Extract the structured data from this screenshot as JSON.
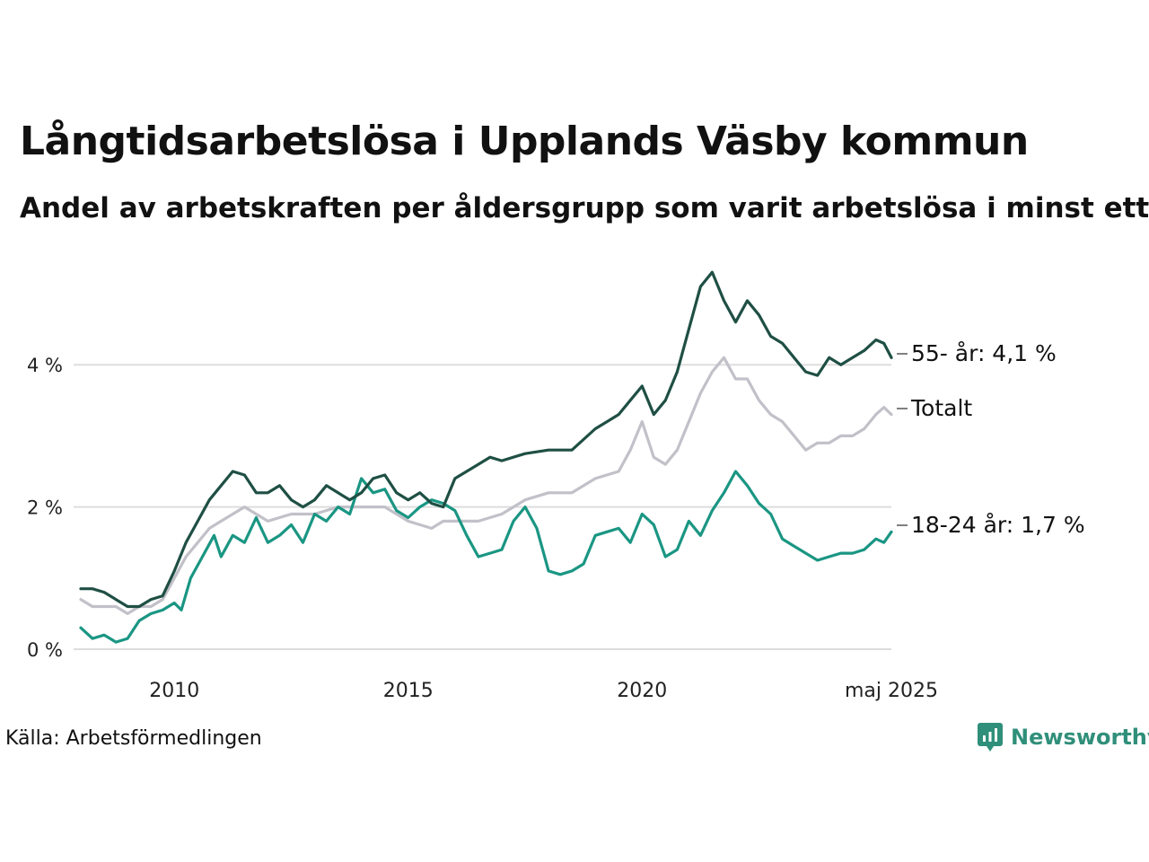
{
  "title": "Långtidsarbetslösa i Upplands Väsby kommun",
  "subtitle": "Andel av arbetskraften per åldersgrupp som varit arbetslösa i minst ett år",
  "source": "Källa: Arbetsförmedlingen",
  "brand": "Newsworthy",
  "colors": {
    "series_55": "#1f4f44",
    "series_total": "#c2c0c8",
    "series_18_24": "#1a9683",
    "grid": "#dddddd",
    "brand": "#2f8f7a"
  },
  "chart_data": {
    "type": "line",
    "x_unit": "year (decimal)",
    "xlim": [
      2008.0,
      2025.33
    ],
    "ylim": [
      0,
      5.4
    ],
    "y_ticks": [
      0,
      2,
      4
    ],
    "y_tick_labels": [
      "0 %",
      "2 %",
      "4 %"
    ],
    "x_ticks": [
      2010,
      2015,
      2020,
      2025.33
    ],
    "x_tick_labels": [
      "2010",
      "2015",
      "2020",
      "maj 2025"
    ],
    "grid": "horizontal",
    "legend": "direct labels at line ends",
    "series": [
      {
        "key": "total",
        "name": "Totalt",
        "end_label": "Totalt",
        "points": [
          [
            2008.0,
            0.7
          ],
          [
            2008.25,
            0.6
          ],
          [
            2008.75,
            0.6
          ],
          [
            2009.0,
            0.5
          ],
          [
            2009.25,
            0.6
          ],
          [
            2009.5,
            0.6
          ],
          [
            2009.75,
            0.7
          ],
          [
            2010.0,
            1.0
          ],
          [
            2010.25,
            1.3
          ],
          [
            2010.5,
            1.5
          ],
          [
            2010.75,
            1.7
          ],
          [
            2011.0,
            1.8
          ],
          [
            2011.25,
            1.9
          ],
          [
            2011.5,
            2.0
          ],
          [
            2011.75,
            1.9
          ],
          [
            2012.0,
            1.8
          ],
          [
            2012.5,
            1.9
          ],
          [
            2013.0,
            1.9
          ],
          [
            2013.5,
            2.0
          ],
          [
            2014.0,
            2.0
          ],
          [
            2014.5,
            2.0
          ],
          [
            2014.75,
            1.9
          ],
          [
            2015.0,
            1.8
          ],
          [
            2015.5,
            1.7
          ],
          [
            2015.75,
            1.8
          ],
          [
            2016.0,
            1.8
          ],
          [
            2016.5,
            1.8
          ],
          [
            2017.0,
            1.9
          ],
          [
            2017.5,
            2.1
          ],
          [
            2018.0,
            2.2
          ],
          [
            2018.5,
            2.2
          ],
          [
            2019.0,
            2.4
          ],
          [
            2019.5,
            2.5
          ],
          [
            2019.75,
            2.8
          ],
          [
            2020.0,
            3.2
          ],
          [
            2020.25,
            2.7
          ],
          [
            2020.5,
            2.6
          ],
          [
            2020.75,
            2.8
          ],
          [
            2021.0,
            3.2
          ],
          [
            2021.25,
            3.6
          ],
          [
            2021.5,
            3.9
          ],
          [
            2021.75,
            4.1
          ],
          [
            2022.0,
            3.8
          ],
          [
            2022.25,
            3.8
          ],
          [
            2022.5,
            3.5
          ],
          [
            2022.75,
            3.3
          ],
          [
            2023.0,
            3.2
          ],
          [
            2023.25,
            3.0
          ],
          [
            2023.5,
            2.8
          ],
          [
            2023.75,
            2.9
          ],
          [
            2024.0,
            2.9
          ],
          [
            2024.25,
            3.0
          ],
          [
            2024.5,
            3.0
          ],
          [
            2024.75,
            3.1
          ],
          [
            2025.0,
            3.3
          ],
          [
            2025.17,
            3.4
          ],
          [
            2025.33,
            3.3
          ]
        ]
      },
      {
        "key": "age_18_24",
        "name": "18-24 år",
        "end_label": "18-24 år: 1,7 %",
        "points": [
          [
            2008.0,
            0.3
          ],
          [
            2008.25,
            0.15
          ],
          [
            2008.5,
            0.2
          ],
          [
            2008.75,
            0.1
          ],
          [
            2009.0,
            0.15
          ],
          [
            2009.25,
            0.4
          ],
          [
            2009.5,
            0.5
          ],
          [
            2009.75,
            0.55
          ],
          [
            2010.0,
            0.65
          ],
          [
            2010.15,
            0.55
          ],
          [
            2010.35,
            1.0
          ],
          [
            2010.6,
            1.3
          ],
          [
            2010.85,
            1.6
          ],
          [
            2011.0,
            1.3
          ],
          [
            2011.25,
            1.6
          ],
          [
            2011.5,
            1.5
          ],
          [
            2011.75,
            1.85
          ],
          [
            2012.0,
            1.5
          ],
          [
            2012.25,
            1.6
          ],
          [
            2012.5,
            1.75
          ],
          [
            2012.75,
            1.5
          ],
          [
            2013.0,
            1.9
          ],
          [
            2013.25,
            1.8
          ],
          [
            2013.5,
            2.0
          ],
          [
            2013.75,
            1.9
          ],
          [
            2014.0,
            2.4
          ],
          [
            2014.25,
            2.2
          ],
          [
            2014.5,
            2.25
          ],
          [
            2014.75,
            1.95
          ],
          [
            2015.0,
            1.85
          ],
          [
            2015.25,
            2.0
          ],
          [
            2015.5,
            2.1
          ],
          [
            2015.75,
            2.05
          ],
          [
            2016.0,
            1.95
          ],
          [
            2016.25,
            1.6
          ],
          [
            2016.5,
            1.3
          ],
          [
            2016.75,
            1.35
          ],
          [
            2017.0,
            1.4
          ],
          [
            2017.25,
            1.8
          ],
          [
            2017.5,
            2.0
          ],
          [
            2017.75,
            1.7
          ],
          [
            2018.0,
            1.1
          ],
          [
            2018.25,
            1.05
          ],
          [
            2018.5,
            1.1
          ],
          [
            2018.75,
            1.2
          ],
          [
            2019.0,
            1.6
          ],
          [
            2019.25,
            1.65
          ],
          [
            2019.5,
            1.7
          ],
          [
            2019.75,
            1.5
          ],
          [
            2020.0,
            1.9
          ],
          [
            2020.25,
            1.75
          ],
          [
            2020.5,
            1.3
          ],
          [
            2020.75,
            1.4
          ],
          [
            2021.0,
            1.8
          ],
          [
            2021.25,
            1.6
          ],
          [
            2021.5,
            1.95
          ],
          [
            2021.75,
            2.2
          ],
          [
            2022.0,
            2.5
          ],
          [
            2022.25,
            2.3
          ],
          [
            2022.5,
            2.05
          ],
          [
            2022.75,
            1.9
          ],
          [
            2023.0,
            1.55
          ],
          [
            2023.25,
            1.45
          ],
          [
            2023.5,
            1.35
          ],
          [
            2023.75,
            1.25
          ],
          [
            2024.0,
            1.3
          ],
          [
            2024.25,
            1.35
          ],
          [
            2024.5,
            1.35
          ],
          [
            2024.75,
            1.4
          ],
          [
            2025.0,
            1.55
          ],
          [
            2025.17,
            1.5
          ],
          [
            2025.33,
            1.65
          ]
        ]
      },
      {
        "key": "age_55",
        "name": "55- år",
        "end_label": "55- år: 4,1 %",
        "points": [
          [
            2008.0,
            0.85
          ],
          [
            2008.25,
            0.85
          ],
          [
            2008.5,
            0.8
          ],
          [
            2008.75,
            0.7
          ],
          [
            2009.0,
            0.6
          ],
          [
            2009.25,
            0.6
          ],
          [
            2009.5,
            0.7
          ],
          [
            2009.75,
            0.75
          ],
          [
            2010.0,
            1.1
          ],
          [
            2010.25,
            1.5
          ],
          [
            2010.5,
            1.8
          ],
          [
            2010.75,
            2.1
          ],
          [
            2011.0,
            2.3
          ],
          [
            2011.25,
            2.5
          ],
          [
            2011.5,
            2.45
          ],
          [
            2011.75,
            2.2
          ],
          [
            2012.0,
            2.2
          ],
          [
            2012.25,
            2.3
          ],
          [
            2012.5,
            2.1
          ],
          [
            2012.75,
            2.0
          ],
          [
            2013.0,
            2.1
          ],
          [
            2013.25,
            2.3
          ],
          [
            2013.5,
            2.2
          ],
          [
            2013.75,
            2.1
          ],
          [
            2014.0,
            2.2
          ],
          [
            2014.25,
            2.4
          ],
          [
            2014.5,
            2.45
          ],
          [
            2014.75,
            2.2
          ],
          [
            2015.0,
            2.1
          ],
          [
            2015.25,
            2.2
          ],
          [
            2015.5,
            2.05
          ],
          [
            2015.75,
            2.0
          ],
          [
            2016.0,
            2.4
          ],
          [
            2016.25,
            2.5
          ],
          [
            2016.5,
            2.6
          ],
          [
            2016.75,
            2.7
          ],
          [
            2017.0,
            2.65
          ],
          [
            2017.5,
            2.75
          ],
          [
            2018.0,
            2.8
          ],
          [
            2018.5,
            2.8
          ],
          [
            2019.0,
            3.1
          ],
          [
            2019.25,
            3.2
          ],
          [
            2019.5,
            3.3
          ],
          [
            2019.75,
            3.5
          ],
          [
            2020.0,
            3.7
          ],
          [
            2020.25,
            3.3
          ],
          [
            2020.5,
            3.5
          ],
          [
            2020.75,
            3.9
          ],
          [
            2021.0,
            4.5
          ],
          [
            2021.25,
            5.1
          ],
          [
            2021.5,
            5.3
          ],
          [
            2021.75,
            4.9
          ],
          [
            2022.0,
            4.6
          ],
          [
            2022.25,
            4.9
          ],
          [
            2022.5,
            4.7
          ],
          [
            2022.75,
            4.4
          ],
          [
            2023.0,
            4.3
          ],
          [
            2023.25,
            4.1
          ],
          [
            2023.5,
            3.9
          ],
          [
            2023.75,
            3.85
          ],
          [
            2024.0,
            4.1
          ],
          [
            2024.25,
            4.0
          ],
          [
            2024.5,
            4.1
          ],
          [
            2024.75,
            4.2
          ],
          [
            2025.0,
            4.35
          ],
          [
            2025.17,
            4.3
          ],
          [
            2025.33,
            4.1
          ]
        ]
      }
    ]
  }
}
